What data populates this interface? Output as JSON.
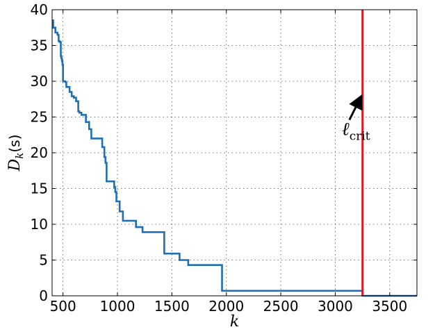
{
  "chart_data": {
    "type": "line",
    "title": "",
    "xlabel": "k",
    "ylabel": "D",
    "ylabel_subscript": "k",
    "ylabel_unit": "(s)",
    "xlim": [
      400,
      3750
    ],
    "ylim": [
      0,
      40
    ],
    "grid": true,
    "x_ticks": [
      500,
      1000,
      1500,
      2000,
      2500,
      3000,
      3500
    ],
    "x_tick_labels": [
      "500",
      "1000",
      "1500",
      "2000",
      "2500",
      "3000",
      "3500"
    ],
    "y_ticks": [
      0,
      5,
      10,
      15,
      20,
      25,
      30,
      35,
      40
    ],
    "y_tick_labels": [
      "0",
      "5",
      "10",
      "15",
      "20",
      "25",
      "30",
      "35",
      "40"
    ],
    "series": [
      {
        "color": "#1f6fb4",
        "step": "post",
        "points": [
          [
            400,
            38.5
          ],
          [
            410,
            37.5
          ],
          [
            430,
            36.8
          ],
          [
            450,
            36.5
          ],
          [
            460,
            35.6
          ],
          [
            470,
            35.5
          ],
          [
            480,
            33.5
          ],
          [
            485,
            33.2
          ],
          [
            490,
            32.8
          ],
          [
            495,
            32.3
          ],
          [
            500,
            30.0
          ],
          [
            520,
            29.9
          ],
          [
            530,
            29.2
          ],
          [
            560,
            28.5
          ],
          [
            580,
            27.9
          ],
          [
            600,
            27.7
          ],
          [
            620,
            27.2
          ],
          [
            640,
            25.8
          ],
          [
            650,
            25.6
          ],
          [
            670,
            25.3
          ],
          [
            710,
            24.3
          ],
          [
            740,
            23.3
          ],
          [
            760,
            22.0
          ],
          [
            860,
            20.8
          ],
          [
            880,
            19.4
          ],
          [
            890,
            18.6
          ],
          [
            900,
            16.0
          ],
          [
            970,
            15.2
          ],
          [
            980,
            14.5
          ],
          [
            990,
            13.2
          ],
          [
            1020,
            11.8
          ],
          [
            1050,
            10.5
          ],
          [
            1170,
            9.6
          ],
          [
            1230,
            8.9
          ],
          [
            1430,
            5.9
          ],
          [
            1570,
            5.0
          ],
          [
            1650,
            4.3
          ],
          [
            1960,
            0.7
          ],
          [
            3250,
            0.0
          ],
          [
            3750,
            0.0
          ]
        ]
      }
    ],
    "critical_line": {
      "x": 3250,
      "color": "#e8141c"
    },
    "annotation": {
      "symbol": "ℓ",
      "subscript": "crit",
      "text_at": [
        3060,
        22.5
      ],
      "arrow_from": [
        3130,
        24.6
      ],
      "arrow_to": [
        3235,
        27.8
      ]
    }
  }
}
